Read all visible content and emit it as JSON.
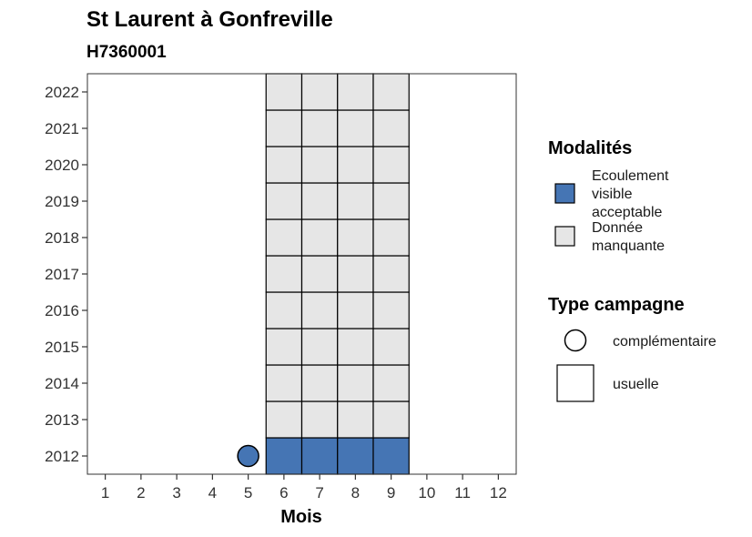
{
  "chart_data": {
    "type": "heatmap",
    "title": "St Laurent à Gonfreville",
    "subtitle": "H7360001",
    "xlabel": "Mois",
    "ylabel": "",
    "x_ticks": [
      1,
      2,
      3,
      4,
      5,
      6,
      7,
      8,
      9,
      10,
      11,
      12
    ],
    "y_ticks": [
      2012,
      2013,
      2014,
      2015,
      2016,
      2017,
      2018,
      2019,
      2020,
      2021,
      2022
    ],
    "xlim": [
      0.5,
      12.5
    ],
    "ylim": [
      2011.5,
      2022.5
    ],
    "grid": false,
    "cells": [
      {
        "year": 2012,
        "month": 6,
        "modalite": "Ecoulement visible acceptable",
        "campagne": "usuelle"
      },
      {
        "year": 2012,
        "month": 7,
        "modalite": "Ecoulement visible acceptable",
        "campagne": "usuelle"
      },
      {
        "year": 2012,
        "month": 8,
        "modalite": "Ecoulement visible acceptable",
        "campagne": "usuelle"
      },
      {
        "year": 2012,
        "month": 9,
        "modalite": "Ecoulement visible acceptable",
        "campagne": "usuelle"
      },
      {
        "year": 2012,
        "month": 5,
        "modalite": "Ecoulement visible acceptable",
        "campagne": "complémentaire"
      },
      {
        "year": 2013,
        "month": 6,
        "modalite": "Donnée manquante",
        "campagne": "usuelle"
      },
      {
        "year": 2013,
        "month": 7,
        "modalite": "Donnée manquante",
        "campagne": "usuelle"
      },
      {
        "year": 2013,
        "month": 8,
        "modalite": "Donnée manquante",
        "campagne": "usuelle"
      },
      {
        "year": 2013,
        "month": 9,
        "modalite": "Donnée manquante",
        "campagne": "usuelle"
      },
      {
        "year": 2014,
        "month": 6,
        "modalite": "Donnée manquante",
        "campagne": "usuelle"
      },
      {
        "year": 2014,
        "month": 7,
        "modalite": "Donnée manquante",
        "campagne": "usuelle"
      },
      {
        "year": 2014,
        "month": 8,
        "modalite": "Donnée manquante",
        "campagne": "usuelle"
      },
      {
        "year": 2014,
        "month": 9,
        "modalite": "Donnée manquante",
        "campagne": "usuelle"
      },
      {
        "year": 2015,
        "month": 6,
        "modalite": "Donnée manquante",
        "campagne": "usuelle"
      },
      {
        "year": 2015,
        "month": 7,
        "modalite": "Donnée manquante",
        "campagne": "usuelle"
      },
      {
        "year": 2015,
        "month": 8,
        "modalite": "Donnée manquante",
        "campagne": "usuelle"
      },
      {
        "year": 2015,
        "month": 9,
        "modalite": "Donnée manquante",
        "campagne": "usuelle"
      },
      {
        "year": 2016,
        "month": 6,
        "modalite": "Donnée manquante",
        "campagne": "usuelle"
      },
      {
        "year": 2016,
        "month": 7,
        "modalite": "Donnée manquante",
        "campagne": "usuelle"
      },
      {
        "year": 2016,
        "month": 8,
        "modalite": "Donnée manquante",
        "campagne": "usuelle"
      },
      {
        "year": 2016,
        "month": 9,
        "modalite": "Donnée manquante",
        "campagne": "usuelle"
      },
      {
        "year": 2017,
        "month": 6,
        "modalite": "Donnée manquante",
        "campagne": "usuelle"
      },
      {
        "year": 2017,
        "month": 7,
        "modalite": "Donnée manquante",
        "campagne": "usuelle"
      },
      {
        "year": 2017,
        "month": 8,
        "modalite": "Donnée manquante",
        "campagne": "usuelle"
      },
      {
        "year": 2017,
        "month": 9,
        "modalite": "Donnée manquante",
        "campagne": "usuelle"
      },
      {
        "year": 2018,
        "month": 6,
        "modalite": "Donnée manquante",
        "campagne": "usuelle"
      },
      {
        "year": 2018,
        "month": 7,
        "modalite": "Donnée manquante",
        "campagne": "usuelle"
      },
      {
        "year": 2018,
        "month": 8,
        "modalite": "Donnée manquante",
        "campagne": "usuelle"
      },
      {
        "year": 2018,
        "month": 9,
        "modalite": "Donnée manquante",
        "campagne": "usuelle"
      },
      {
        "year": 2019,
        "month": 6,
        "modalite": "Donnée manquante",
        "campagne": "usuelle"
      },
      {
        "year": 2019,
        "month": 7,
        "modalite": "Donnée manquante",
        "campagne": "usuelle"
      },
      {
        "year": 2019,
        "month": 8,
        "modalite": "Donnée manquante",
        "campagne": "usuelle"
      },
      {
        "year": 2019,
        "month": 9,
        "modalite": "Donnée manquante",
        "campagne": "usuelle"
      },
      {
        "year": 2020,
        "month": 6,
        "modalite": "Donnée manquante",
        "campagne": "usuelle"
      },
      {
        "year": 2020,
        "month": 7,
        "modalite": "Donnée manquante",
        "campagne": "usuelle"
      },
      {
        "year": 2020,
        "month": 8,
        "modalite": "Donnée manquante",
        "campagne": "usuelle"
      },
      {
        "year": 2020,
        "month": 9,
        "modalite": "Donnée manquante",
        "campagne": "usuelle"
      },
      {
        "year": 2021,
        "month": 6,
        "modalite": "Donnée manquante",
        "campagne": "usuelle"
      },
      {
        "year": 2021,
        "month": 7,
        "modalite": "Donnée manquante",
        "campagne": "usuelle"
      },
      {
        "year": 2021,
        "month": 8,
        "modalite": "Donnée manquante",
        "campagne": "usuelle"
      },
      {
        "year": 2021,
        "month": 9,
        "modalite": "Donnée manquante",
        "campagne": "usuelle"
      },
      {
        "year": 2022,
        "month": 6,
        "modalite": "Donnée manquante",
        "campagne": "usuelle"
      },
      {
        "year": 2022,
        "month": 7,
        "modalite": "Donnée manquante",
        "campagne": "usuelle"
      },
      {
        "year": 2022,
        "month": 8,
        "modalite": "Donnée manquante",
        "campagne": "usuelle"
      },
      {
        "year": 2022,
        "month": 9,
        "modalite": "Donnée manquante",
        "campagne": "usuelle"
      }
    ],
    "legend": {
      "placement": "right",
      "modalites_title": "Modalités",
      "modalites": [
        {
          "label_lines": [
            "Ecoulement",
            "visible",
            "acceptable"
          ],
          "value": "Ecoulement visible acceptable",
          "color": "#4575b4"
        },
        {
          "label_lines": [
            "Donnée",
            "manquante"
          ],
          "value": "Donnée manquante",
          "color": "#e6e6e6"
        }
      ],
      "campagne_title": "Type campagne",
      "campagnes": [
        {
          "label": "complémentaire",
          "shape": "circle"
        },
        {
          "label": "usuelle",
          "shape": "square"
        }
      ]
    }
  }
}
